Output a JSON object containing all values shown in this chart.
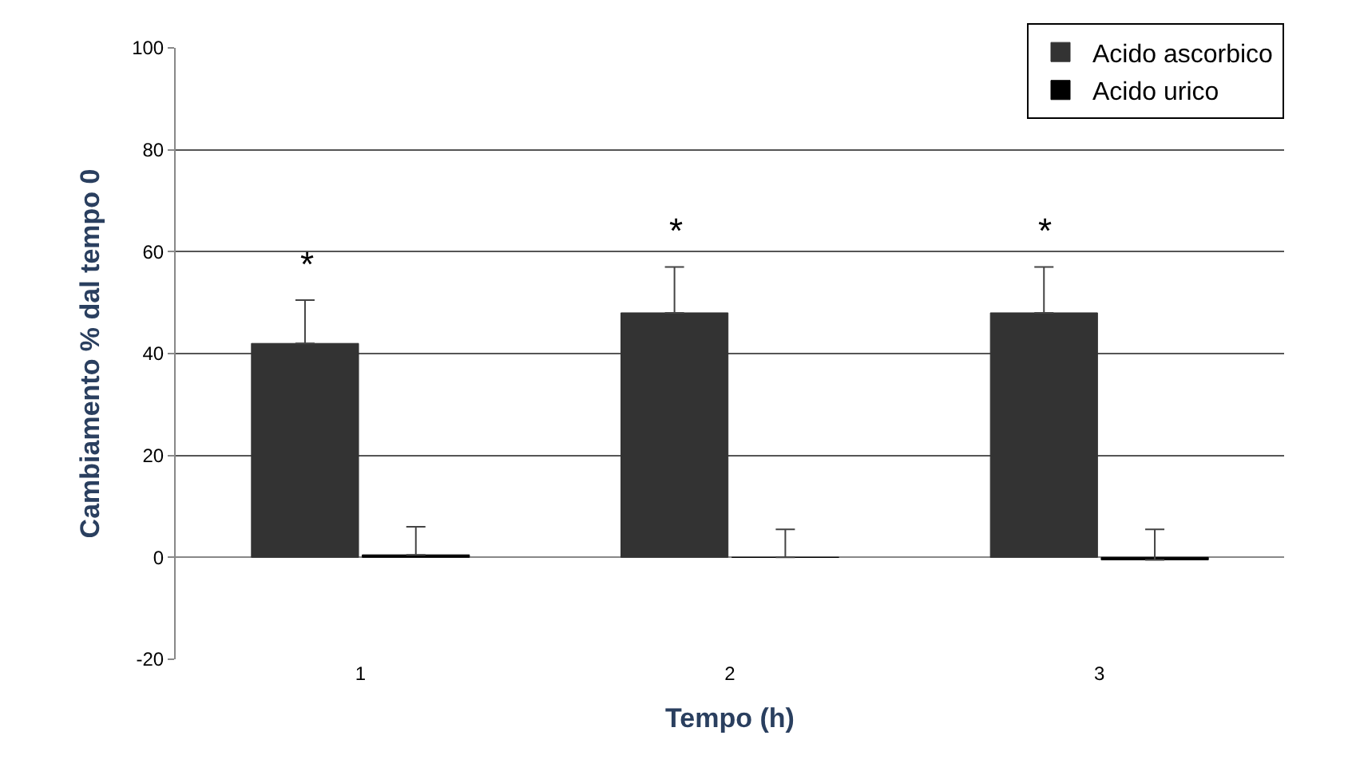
{
  "chart_data": {
    "type": "bar",
    "xlabel": "Tempo (h)",
    "ylabel": "Cambiamento % dal tempo 0",
    "categories": [
      "1",
      "2",
      "3"
    ],
    "series": [
      {
        "name": "Acido ascorbico",
        "color": "#333333",
        "values": [
          42,
          48,
          48
        ],
        "errors": [
          [
            42,
            50.5
          ],
          [
            48,
            57
          ],
          [
            48,
            57
          ]
        ]
      },
      {
        "name": "Acido urico",
        "color": "#000000",
        "values": [
          0.5,
          0,
          -0.5
        ],
        "errors": [
          [
            0.5,
            6
          ],
          [
            0,
            5.5
          ],
          [
            -0.5,
            5.5
          ]
        ]
      }
    ],
    "ylim": [
      -20,
      100
    ],
    "yticks": [
      -20,
      0,
      20,
      40,
      60,
      80,
      100
    ],
    "grid": "y",
    "legend": "top right",
    "annotations": [
      "*",
      "*",
      "*"
    ]
  }
}
